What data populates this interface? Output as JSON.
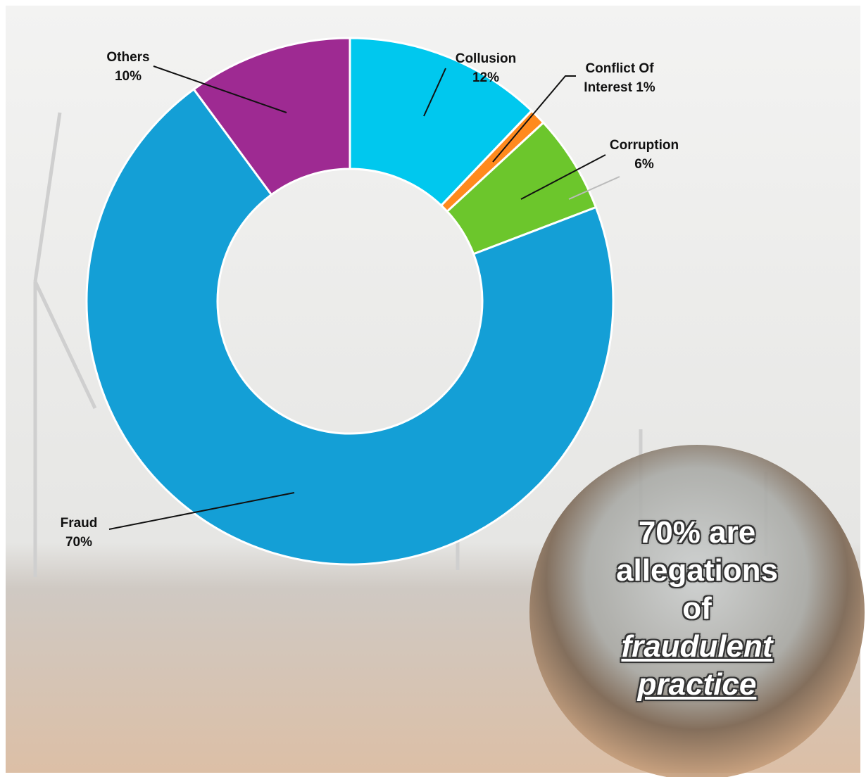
{
  "chart_data": {
    "type": "donut",
    "categories": [
      "Collusion",
      "Conflict Of Interest",
      "Corruption",
      "Fraud",
      "Others"
    ],
    "values": [
      12,
      1,
      6,
      70,
      10
    ],
    "value_labels": [
      "12%",
      "1%",
      "6%",
      "70%",
      "10%"
    ],
    "colors": [
      "#00c8ee",
      "#ff8a1e",
      "#6cc62c",
      "#149fd6",
      "#9e2a92"
    ]
  },
  "callout": {
    "lines": [
      "70% are",
      "allegations",
      "of"
    ],
    "emphasis": [
      "fraudulent",
      "practice"
    ]
  }
}
